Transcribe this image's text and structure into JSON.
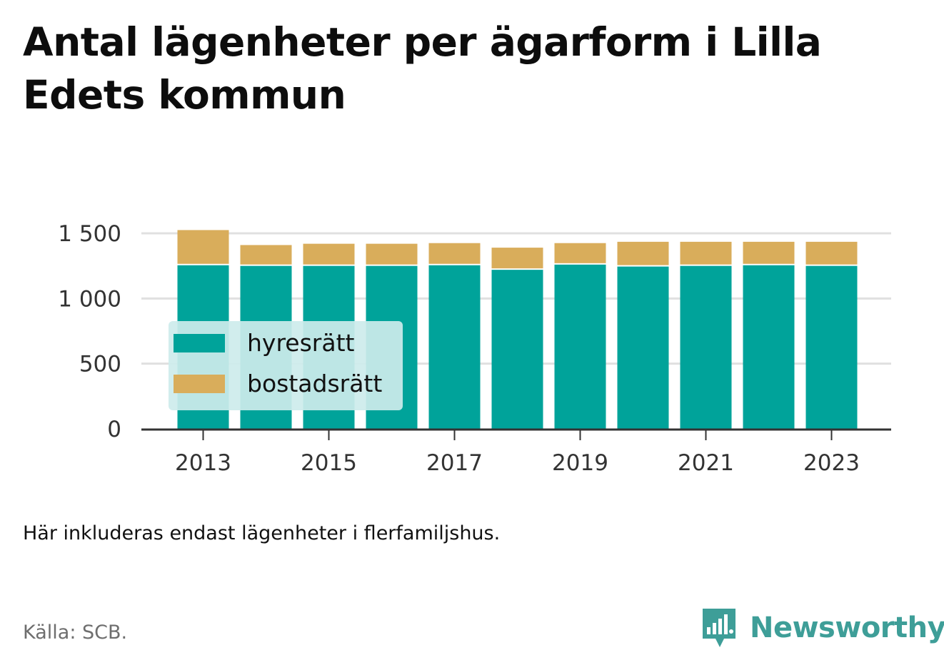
{
  "title": "Antal lägenheter per ägarform i Lilla Edets kommun",
  "note": "Här inkluderas endast lägenheter i flerfamiljshus.",
  "source": "Källa: SCB.",
  "brand": "Newsworthy",
  "colors": {
    "hyresratt": "#00a39a",
    "bostadsratt": "#d9ad5b",
    "grid": "#e0e0e0",
    "axis": "#333333",
    "legend_bg": "#cdeceb",
    "brand": "#3e9e98"
  },
  "chart_data": {
    "type": "bar",
    "stacked": true,
    "categories": [
      "2013",
      "2014",
      "2015",
      "2016",
      "2017",
      "2018",
      "2019",
      "2020",
      "2021",
      "2022",
      "2023"
    ],
    "x_tick_labels": [
      "2013",
      "2015",
      "2017",
      "2019",
      "2021",
      "2023"
    ],
    "series": [
      {
        "name": "hyresrätt",
        "values": [
          1255,
          1250,
          1250,
          1250,
          1255,
          1220,
          1260,
          1245,
          1250,
          1255,
          1250
        ]
      },
      {
        "name": "bostadsrätt",
        "values": [
          270,
          160,
          170,
          170,
          170,
          170,
          165,
          190,
          185,
          180,
          185
        ]
      }
    ],
    "ylim": [
      0,
      1500
    ],
    "y_ticks": [
      0,
      500,
      1000,
      1500
    ],
    "y_tick_labels": [
      "0",
      "500",
      "1 000",
      "1 500"
    ],
    "grid": true,
    "legend_position": "inside-left"
  }
}
